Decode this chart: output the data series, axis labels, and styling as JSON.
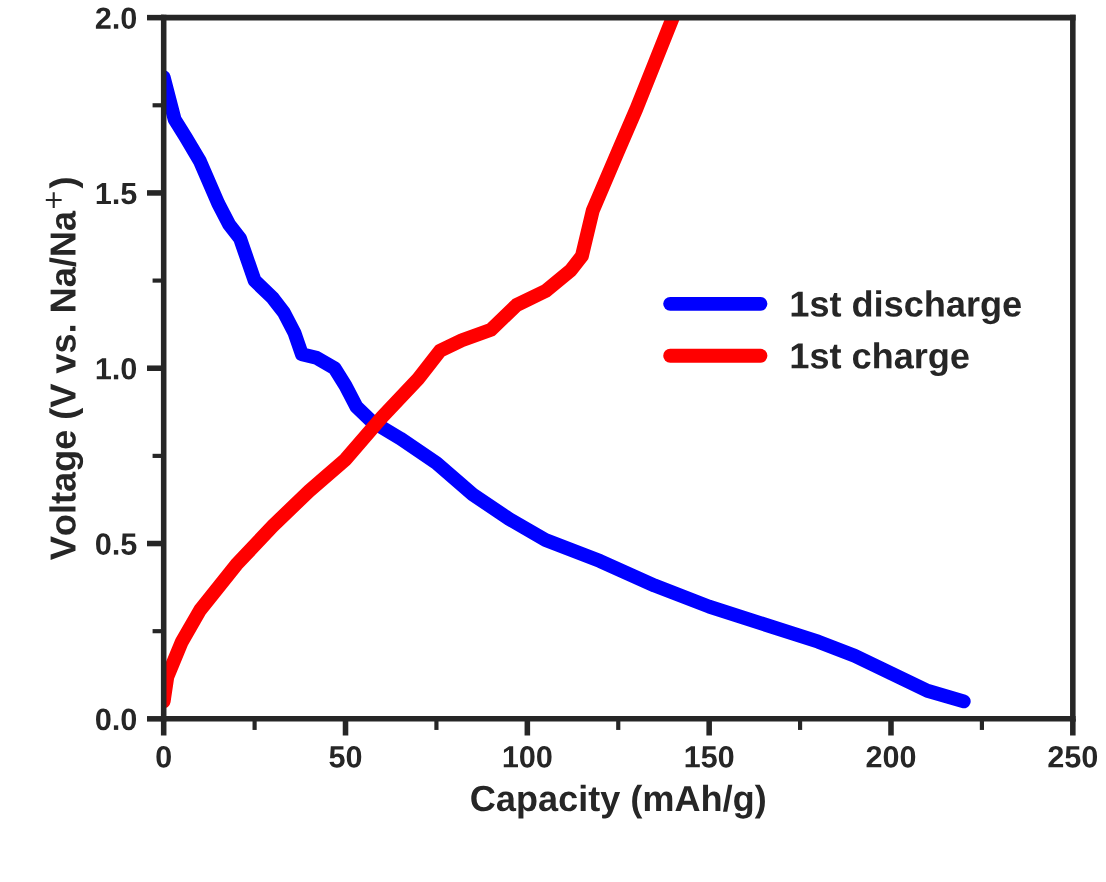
{
  "chart_data": {
    "type": "line",
    "xlabel": "Capacity (mAh/g)",
    "ylabel": "Voltage (V vs. Na/Na$^{+}$)",
    "xlim": [
      0,
      250
    ],
    "xticks": [
      0,
      50,
      100,
      150,
      200,
      250
    ],
    "ylim": [
      0,
      2.0
    ],
    "yticks": [
      {
        "value": 0,
        "label": "0.0"
      },
      0.5,
      {
        "value": 1,
        "label": "1.0"
      },
      1.5,
      {
        "value": 2,
        "label": "2.0"
      }
    ],
    "grid": false,
    "legend": "right",
    "line_style": "solid",
    "marker": "none",
    "series": [
      {
        "name": "1st discharge",
        "color": "#0000ff",
        "x": [
          0,
          3,
          6,
          10,
          15,
          18,
          21,
          25,
          30,
          33,
          36,
          38,
          42,
          47,
          50,
          53,
          57,
          65,
          75,
          85,
          95,
          105,
          120,
          135,
          150,
          165,
          180,
          190,
          200,
          210,
          220
        ],
        "values": [
          1.83,
          1.71,
          1.66,
          1.59,
          1.47,
          1.41,
          1.37,
          1.25,
          1.2,
          1.16,
          1.1,
          1.04,
          1.03,
          1.0,
          0.95,
          0.89,
          0.85,
          0.8,
          0.73,
          0.64,
          0.57,
          0.51,
          0.45,
          0.38,
          0.32,
          0.27,
          0.22,
          0.18,
          0.13,
          0.08,
          0.05
        ]
      },
      {
        "name": "1st charge",
        "color": "#ff0000",
        "x": [
          0,
          1,
          5,
          10,
          20,
          30,
          40,
          50,
          60,
          70,
          76,
          82,
          90,
          97,
          105,
          112,
          115,
          118,
          125,
          130,
          135,
          140
        ],
        "values": [
          0.05,
          0.12,
          0.22,
          0.31,
          0.44,
          0.55,
          0.65,
          0.74,
          0.86,
          0.97,
          1.05,
          1.08,
          1.11,
          1.18,
          1.22,
          1.28,
          1.32,
          1.45,
          1.62,
          1.74,
          1.87,
          2.0
        ]
      }
    ]
  }
}
